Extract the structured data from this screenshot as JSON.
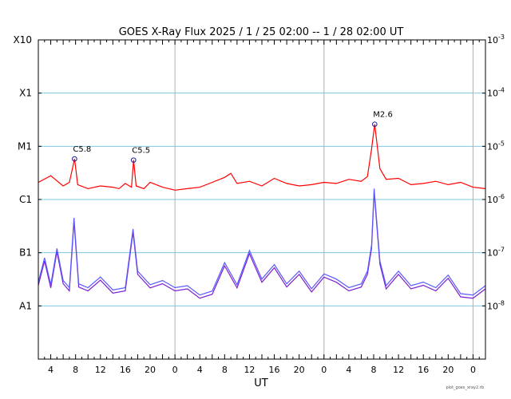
{
  "chart_data": {
    "type": "line",
    "title": "GOES X-Ray Flux   2025 /  1 / 25   02:00 --  1 / 28   02:00   UT",
    "xlabel": "UT",
    "x_start": "2025-01-25 02:00",
    "x_end": "2025-01-28 02:00",
    "x_ticks": [
      "4",
      "8",
      "12",
      "16",
      "20",
      "0",
      "4",
      "8",
      "12",
      "16",
      "20",
      "0",
      "4",
      "8",
      "12",
      "16",
      "20",
      "0"
    ],
    "y_scale": "log",
    "ylim": [
      1e-09,
      0.001
    ],
    "left_axis_labels": [
      "A1",
      "B1",
      "C1",
      "M1",
      "X1",
      "X10"
    ],
    "right_axis_labels": [
      "10^-8",
      "10^-7",
      "10^-6",
      "10^-5",
      "10^-4",
      "10^-3"
    ],
    "grid": "horizontal lines at 1e-8 .. 1e-4; vertical lines at day boundaries",
    "credit": "plot_goes_xray2.rb",
    "colors": {
      "long_channel": "#ff0000",
      "short_channel_a": "#5a5aff",
      "short_channel_b": "#7a1fcf",
      "grid_h": "#7ec8e3",
      "grid_v": "#b0b0b0"
    },
    "series": [
      {
        "channel": "long",
        "x": [
          "2025-01-25 02:00",
          "2025-01-25 04:00",
          "2025-01-25 06:00",
          "2025-01-25 07:00",
          "2025-01-25 07:50",
          "2025-01-25 08:20",
          "2025-01-25 10:00",
          "2025-01-25 12:00",
          "2025-01-25 14:00",
          "2025-01-25 15:00",
          "2025-01-25 16:00",
          "2025-01-25 17:00",
          "2025-01-25 17:20",
          "2025-01-25 17:45",
          "2025-01-25 19:00",
          "2025-01-25 20:00",
          "2025-01-25 22:00",
          "2025-01-26 00:00",
          "2025-01-26 02:00",
          "2025-01-26 04:00",
          "2025-01-26 06:00",
          "2025-01-26 08:00",
          "2025-01-26 09:00",
          "2025-01-26 10:00",
          "2025-01-26 12:00",
          "2025-01-26 14:00",
          "2025-01-26 16:00",
          "2025-01-26 18:00",
          "2025-01-26 20:00",
          "2025-01-26 22:00",
          "2025-01-27 00:00",
          "2025-01-27 02:00",
          "2025-01-27 04:00",
          "2025-01-27 06:00",
          "2025-01-27 07:00",
          "2025-01-27 07:40",
          "2025-01-27 08:10",
          "2025-01-27 09:00",
          "2025-01-27 10:00",
          "2025-01-27 12:00",
          "2025-01-27 14:00",
          "2025-01-27 16:00",
          "2025-01-27 18:00",
          "2025-01-27 20:00",
          "2025-01-27 22:00",
          "2025-01-28 00:00",
          "2025-01-28 02:00"
        ],
        "y": [
          2.1e-06,
          2.8e-06,
          1.8e-06,
          2.1e-06,
          5.8e-06,
          1.9e-06,
          1.6e-06,
          1.8e-06,
          1.7e-06,
          1.6e-06,
          2e-06,
          1.7e-06,
          5.5e-06,
          1.8e-06,
          1.6e-06,
          2.1e-06,
          1.7e-06,
          1.5e-06,
          1.6e-06,
          1.7e-06,
          2.1e-06,
          2.6e-06,
          3.1e-06,
          2e-06,
          2.2e-06,
          1.8e-06,
          2.5e-06,
          2e-06,
          1.8e-06,
          1.9e-06,
          2.1e-06,
          2e-06,
          2.4e-06,
          2.2e-06,
          2.7e-06,
          9e-06,
          2.6e-05,
          3.8e-06,
          2.4e-06,
          2.5e-06,
          1.9e-06,
          2e-06,
          2.2e-06,
          1.9e-06,
          2.1e-06,
          1.7e-06,
          1.6e-06
        ]
      },
      {
        "channel": "short",
        "x": [
          "2025-01-25 02:00",
          "2025-01-25 03:00",
          "2025-01-25 04:00",
          "2025-01-25 05:00",
          "2025-01-25 06:00",
          "2025-01-25 07:00",
          "2025-01-25 07:45",
          "2025-01-25 08:30",
          "2025-01-25 10:00",
          "2025-01-25 12:00",
          "2025-01-25 14:00",
          "2025-01-25 16:00",
          "2025-01-25 17:15",
          "2025-01-25 18:00",
          "2025-01-25 20:00",
          "2025-01-25 22:00",
          "2025-01-26 00:00",
          "2025-01-26 02:00",
          "2025-01-26 04:00",
          "2025-01-26 06:00",
          "2025-01-26 08:00",
          "2025-01-26 10:00",
          "2025-01-26 12:00",
          "2025-01-26 14:00",
          "2025-01-26 16:00",
          "2025-01-26 18:00",
          "2025-01-26 20:00",
          "2025-01-26 22:00",
          "2025-01-27 00:00",
          "2025-01-27 02:00",
          "2025-01-27 04:00",
          "2025-01-27 06:00",
          "2025-01-27 07:00",
          "2025-01-27 07:40",
          "2025-01-27 08:05",
          "2025-01-27 09:00",
          "2025-01-27 10:00",
          "2025-01-27 12:00",
          "2025-01-27 14:00",
          "2025-01-27 16:00",
          "2025-01-27 18:00",
          "2025-01-27 20:00",
          "2025-01-27 22:00",
          "2025-01-28 00:00",
          "2025-01-28 02:00"
        ],
        "y": [
          2.8e-08,
          8e-08,
          2.5e-08,
          1.2e-07,
          3e-08,
          2.2e-08,
          4.5e-07,
          2.6e-08,
          2.2e-08,
          3.5e-08,
          2e-08,
          2.2e-08,
          2.8e-07,
          4.5e-08,
          2.5e-08,
          3e-08,
          2.2e-08,
          2.4e-08,
          1.6e-08,
          1.9e-08,
          6.5e-08,
          2.5e-08,
          1.1e-07,
          3.2e-08,
          6e-08,
          2.6e-08,
          4.5e-08,
          2.1e-08,
          4e-08,
          3.2e-08,
          2.2e-08,
          2.6e-08,
          4.5e-08,
          1.4e-07,
          1.6e-06,
          7e-08,
          2.4e-08,
          4.5e-08,
          2.4e-08,
          2.8e-08,
          2.2e-08,
          3.8e-08,
          1.7e-08,
          1.6e-08,
          2.4e-08
        ]
      }
    ],
    "annotations": [
      {
        "text": "C5.8",
        "x": "2025-01-25 07:50",
        "y": 5.8e-06
      },
      {
        "text": "C5.5",
        "x": "2025-01-25 17:20",
        "y": 5.5e-06
      },
      {
        "text": "M2.6",
        "x": "2025-01-27 08:10",
        "y": 2.6e-05
      }
    ]
  }
}
